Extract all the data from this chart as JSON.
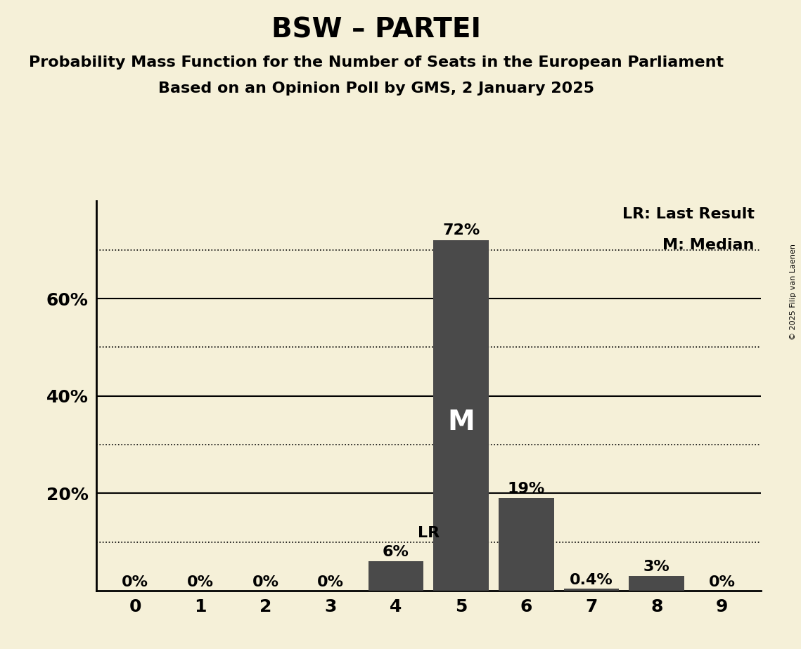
{
  "title": "BSW – PARTEI",
  "subtitle1": "Probability Mass Function for the Number of Seats in the European Parliament",
  "subtitle2": "Based on an Opinion Poll by GMS, 2 January 2025",
  "copyright": "© 2025 Filip van Laenen",
  "categories": [
    0,
    1,
    2,
    3,
    4,
    5,
    6,
    7,
    8,
    9
  ],
  "values": [
    0.0,
    0.0,
    0.0,
    0.0,
    0.06,
    0.72,
    0.19,
    0.004,
    0.03,
    0.0
  ],
  "bar_color": "#4a4a4a",
  "background_color": "#f5f0d8",
  "label_values": [
    "0%",
    "0%",
    "0%",
    "0%",
    "6%",
    "72%",
    "19%",
    "0.4%",
    "3%",
    "0%"
  ],
  "median_seat": 5,
  "lr_value": 0.1,
  "lr_label": "LR",
  "median_label": "M",
  "legend_lr": "LR: Last Result",
  "legend_m": "M: Median",
  "ylim": [
    0,
    0.8
  ],
  "dotted_lines": [
    0.1,
    0.3,
    0.5,
    0.7
  ],
  "solid_lines": [
    0.2,
    0.4,
    0.6
  ],
  "title_fontsize": 28,
  "subtitle_fontsize": 16,
  "axis_fontsize": 18,
  "label_fontsize": 16,
  "bar_label_M_fontsize": 28
}
